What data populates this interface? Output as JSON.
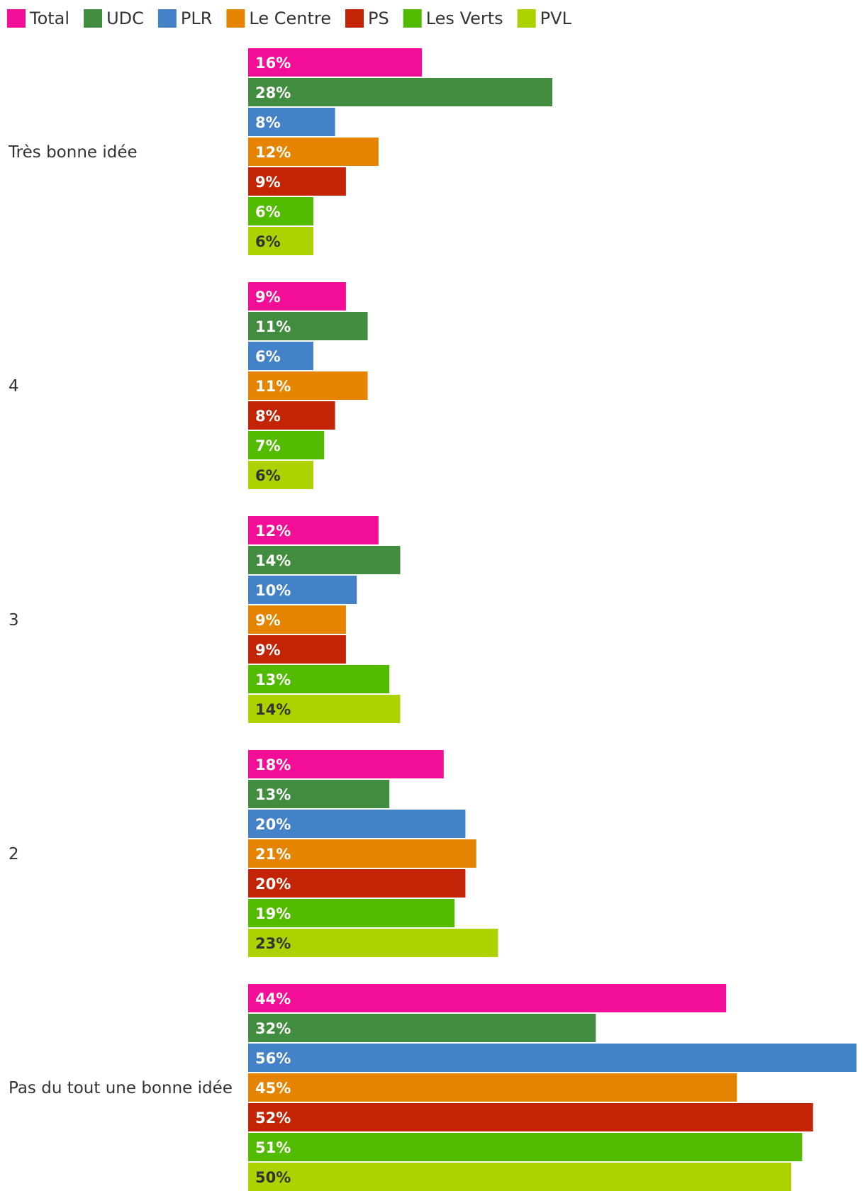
{
  "chart_data": {
    "type": "bar",
    "orientation": "horizontal",
    "legend_position": "top-left",
    "grid": false,
    "title": "",
    "xlabel": "",
    "ylabel": "",
    "xlim": [
      0,
      56
    ],
    "value_suffix": "%",
    "categories": [
      "Très bonne idée",
      "4",
      "3",
      "2",
      "Pas du tout une bonne idée"
    ],
    "series": [
      {
        "name": "Total",
        "color": "#f20e96",
        "label_color": "#ffffff",
        "values": [
          16,
          9,
          12,
          18,
          44
        ]
      },
      {
        "name": "UDC",
        "color": "#418c3e",
        "label_color": "#ffffff",
        "values": [
          28,
          11,
          14,
          13,
          32
        ]
      },
      {
        "name": "PLR",
        "color": "#4382c8",
        "label_color": "#ffffff",
        "values": [
          8,
          6,
          10,
          20,
          56
        ]
      },
      {
        "name": "Le Centre",
        "color": "#e58400",
        "label_color": "#ffffff",
        "values": [
          12,
          11,
          9,
          21,
          45
        ]
      },
      {
        "name": "PS",
        "color": "#c42406",
        "label_color": "#ffffff",
        "values": [
          9,
          8,
          9,
          20,
          52
        ]
      },
      {
        "name": "Les Verts",
        "color": "#52bb00",
        "label_color": "#ffffff",
        "values": [
          6,
          7,
          13,
          19,
          51
        ]
      },
      {
        "name": "PVL",
        "color": "#acd200",
        "label_color": "#333333",
        "values": [
          6,
          6,
          14,
          23,
          50
        ]
      }
    ]
  }
}
